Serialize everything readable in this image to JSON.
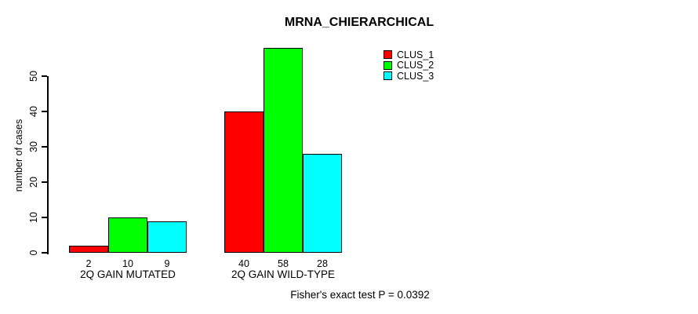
{
  "chart_data": {
    "type": "bar",
    "title": "MRNA_CHIERARCHICAL",
    "ylabel": "number of cases",
    "xlabel": "",
    "categories": [
      "2Q GAIN MUTATED",
      "2Q GAIN WILD-TYPE"
    ],
    "series": [
      {
        "name": "CLUS_1",
        "color": "#FF0000",
        "values": [
          2,
          40
        ]
      },
      {
        "name": "CLUS_2",
        "color": "#00FF00",
        "values": [
          10,
          58
        ]
      },
      {
        "name": "CLUS_3",
        "color": "#00FFFF",
        "values": [
          9,
          28
        ]
      }
    ],
    "yticks": [
      0,
      10,
      20,
      30,
      40,
      50
    ],
    "ylim": [
      0,
      58
    ],
    "grid": false,
    "legend_position": "top-right",
    "bar_border_color": "#000000",
    "background_color": "#FFFFFF",
    "annotation": "Fisher's exact test P = 0.0392"
  }
}
